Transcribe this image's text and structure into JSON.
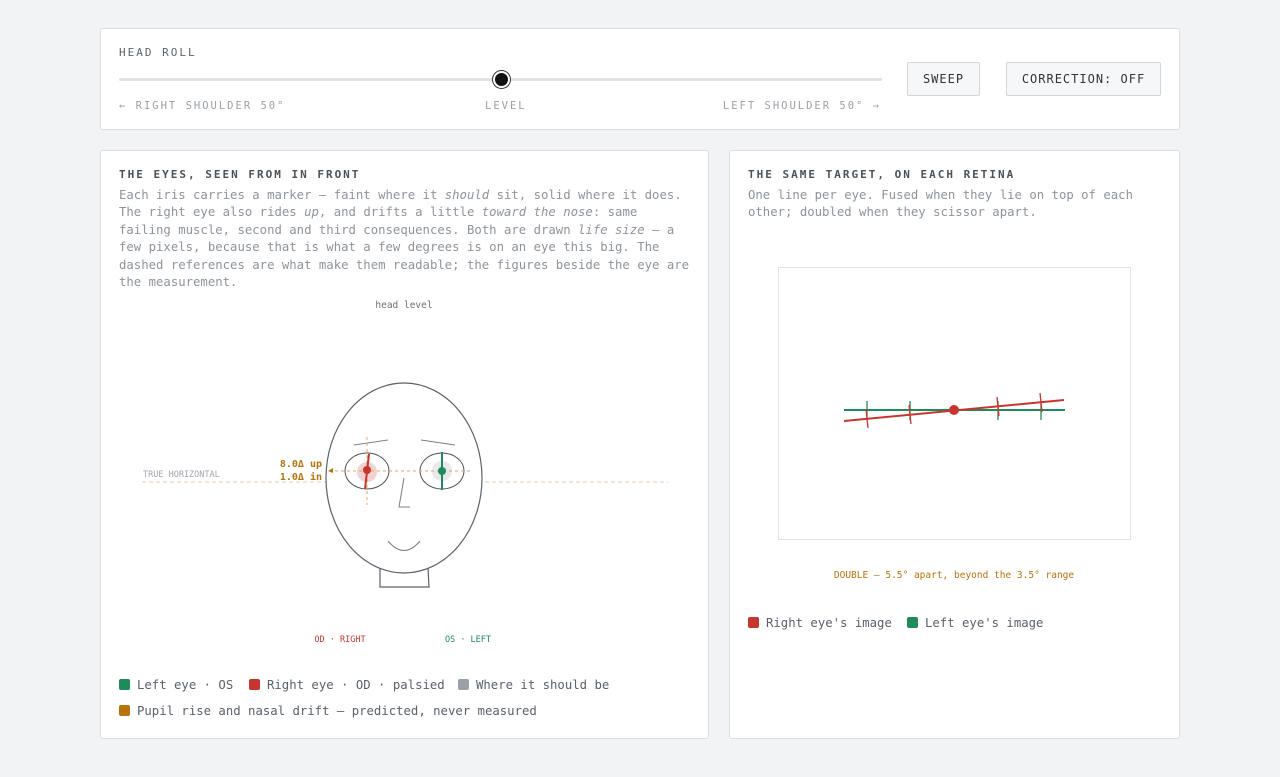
{
  "controls": {
    "label": "HEAD ROLL",
    "slider_left": "← RIGHT SHOULDER 50°",
    "slider_center": "LEVEL",
    "slider_right": "LEFT SHOULDER 50° →",
    "buttons": [
      "SWEEP",
      "CORRECTION: OFF"
    ]
  },
  "eyes_panel": {
    "title": "THE EYES, SEEN FROM IN FRONT",
    "description": [
      "Each iris carries a marker — faint where it ",
      "should",
      " sit, solid where it does. The right eye also rides ",
      "up",
      ", and drifts a little ",
      "toward the nose",
      ": same failing muscle, second and third consequences. Both are drawn ",
      "life size",
      " — a few pixels, because that is what a few degrees is on an eye this big. The dashed references are what make them readable; the figures beside the eye are the measurement."
    ],
    "diagram": {
      "head_label": "head level",
      "horizontal_label": "TRUE HORIZONTAL",
      "rise": "8.0Δ up",
      "drift": "1.0Δ in",
      "right_eye": "OD · RIGHT",
      "left_eye": "OS · LEFT"
    },
    "legend": [
      "Left eye · OS",
      "Right eye · OD · palsied",
      "Where it should be",
      "Pupil rise and nasal drift — predicted, never measured"
    ]
  },
  "retina_panel": {
    "title": "THE SAME TARGET, ON EACH RETINA",
    "description": "One line per eye. Fused when they lie on top of each other; doubled when they scissor apart.",
    "status": "DOUBLE — 5.5° apart, beyond the 3.5° range",
    "legend": [
      "Right eye's image",
      "Left eye's image"
    ]
  }
}
